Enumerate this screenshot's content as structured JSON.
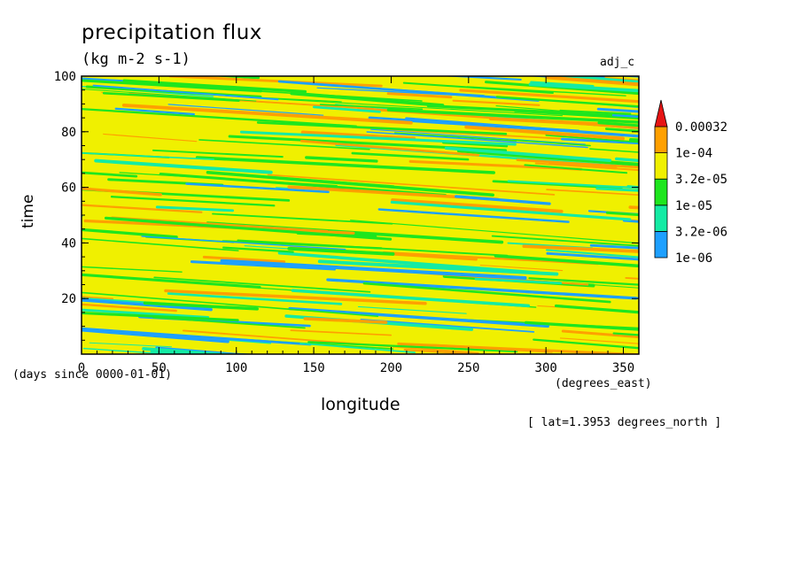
{
  "chart_data": {
    "type": "heatmap",
    "title": "precipitation flux",
    "units": "(kg m-2 s-1)",
    "tag": "adj_c",
    "xlabel": "longitude",
    "ylabel": "time",
    "x_units": "(degrees_east)",
    "y_units": "(days since 0000-01-01)",
    "xlim": [
      0,
      360
    ],
    "ylim": [
      0,
      100
    ],
    "x_ticks": [
      0,
      50,
      100,
      150,
      200,
      250,
      300,
      350
    ],
    "y_ticks": [
      20,
      40,
      60,
      80,
      100
    ],
    "footnote": "[ lat=1.3953 degrees_north ]",
    "colorbar": {
      "levels": [
        "1e-06",
        "3.2e-06",
        "1e-05",
        "3.2e-05",
        "1e-04",
        "0.00032"
      ],
      "colors": [
        "#1ea0ff",
        "#14eba4",
        "#1ee61e",
        "#f0f000",
        "#ffa000",
        "#e61414"
      ]
    },
    "pattern": "eastward-sloping bands of alternating precipitation levels across all longitudes and times"
  }
}
